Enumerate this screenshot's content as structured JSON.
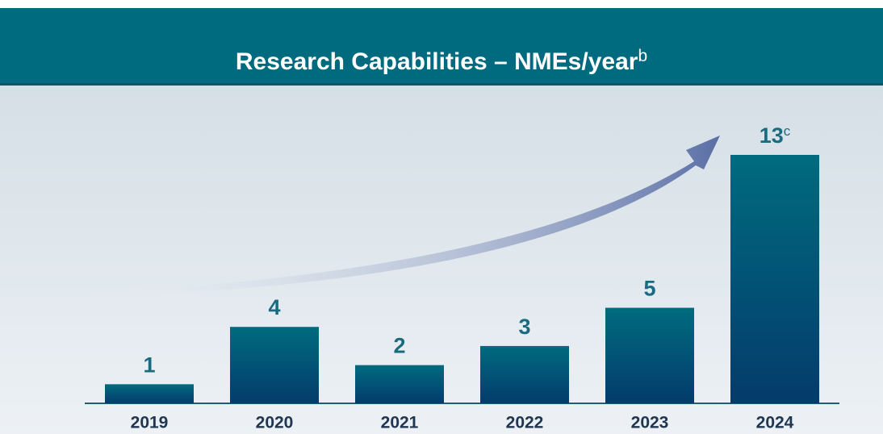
{
  "chart_data": {
    "type": "bar",
    "title": "Research Capabilities – NMEs/year",
    "title_superscript": "b",
    "categories": [
      "2019",
      "2020",
      "2021",
      "2022",
      "2023",
      "2024"
    ],
    "values": [
      1,
      4,
      2,
      3,
      5,
      13
    ],
    "value_superscripts": [
      null,
      null,
      null,
      null,
      null,
      "c"
    ],
    "color": "#00607a",
    "ylim": [
      0,
      13
    ]
  }
}
